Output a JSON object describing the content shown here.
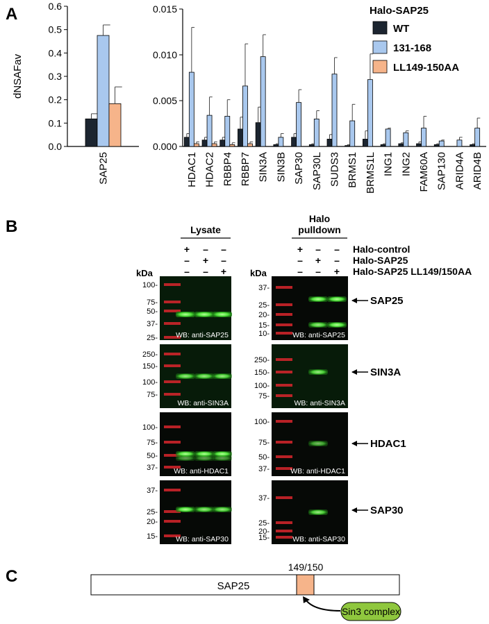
{
  "panels": {
    "a": "A",
    "b": "B",
    "c": "C"
  },
  "legend": {
    "title": "Halo-SAP25",
    "items": [
      {
        "label": "WT",
        "color": "#1c2530"
      },
      {
        "label": "131-168",
        "color": "#a9c8ee"
      },
      {
        "label": "LL149-150AA",
        "color": "#f6b48a"
      }
    ]
  },
  "chart_data": [
    {
      "type": "bar",
      "ylabel": "dNSAFav",
      "ylim": [
        0,
        0.6
      ],
      "yticks": [
        "0.0",
        "0.1",
        "0.2",
        "0.3",
        "0.4",
        "0.5",
        "0.6"
      ],
      "categories": [
        "SAP25"
      ],
      "series": [
        {
          "name": "WT",
          "values": [
            0.118
          ],
          "err": [
            0.022
          ]
        },
        {
          "name": "131-168",
          "values": [
            0.475
          ],
          "err": [
            0.045
          ]
        },
        {
          "name": "LL149-150AA",
          "values": [
            0.183
          ],
          "err": [
            0.072
          ]
        }
      ]
    },
    {
      "type": "bar",
      "ylim": [
        0,
        0.015
      ],
      "yticks": [
        "0.000",
        "0.005",
        "0.010",
        "0.015"
      ],
      "categories": [
        "HDAC1",
        "HDAC2",
        "RBBP4",
        "RBBP7",
        "SIN3A",
        "SIN3B",
        "SAP30",
        "SAP30L",
        "SUDS3",
        "BRMS1",
        "BRMS1L",
        "ING1",
        "ING2",
        "FAM60A",
        "SAP130",
        "ARID4A",
        "ARID4B"
      ],
      "series": [
        {
          "name": "WT",
          "values": [
            0.001,
            0.0007,
            0.0007,
            0.0019,
            0.0026,
            0.0002,
            0.001,
            0.0002,
            0.0008,
            0.0001,
            0.0008,
            0.0002,
            0.0003,
            0.0003,
            0.0002,
            0.0,
            0.0002
          ],
          "err": [
            0.0004,
            0.0003,
            0.0003,
            0.0013,
            0.0017,
            0.0001,
            0.0004,
            0.0001,
            0.0005,
            0.0001,
            0.0009,
            0.0001,
            0.0001,
            0.0002,
            0.0001,
            0,
            0.0001
          ]
        },
        {
          "name": "131-168",
          "values": [
            0.0081,
            0.0034,
            0.0033,
            0.0066,
            0.0098,
            0.001,
            0.0048,
            0.003,
            0.0079,
            0.0028,
            0.0073,
            0.0019,
            0.0015,
            0.002,
            0.0006,
            0.0007,
            0.002
          ],
          "err": [
            0.0049,
            0.002,
            0.0018,
            0.0046,
            0.0024,
            0.0004,
            0.0014,
            0.0009,
            0.0018,
            0.0018,
            0.0028,
            0.0001,
            0.0002,
            0.0013,
            0.0001,
            0.0003,
            0.0011
          ]
        },
        {
          "name": "LL149-150AA",
          "values": [
            0.0003,
            0.0003,
            0.0002,
            0.0003,
            0,
            0,
            0,
            0,
            0,
            0,
            0,
            0,
            0,
            0,
            0,
            0,
            0
          ],
          "err": [
            0.0002,
            0.0002,
            0.0002,
            0.0002,
            0,
            0,
            0,
            0,
            0,
            0,
            0,
            0,
            0,
            0,
            0,
            0,
            0
          ]
        }
      ]
    }
  ],
  "blot": {
    "headers": {
      "lysate": "Lysate",
      "halo_line1": "Halo",
      "halo_line2": "pulldown"
    },
    "conditions": [
      {
        "label": "Halo-control",
        "signs": [
          "+",
          "–",
          "–"
        ]
      },
      {
        "label": "Halo-SAP25",
        "signs": [
          "–",
          "+",
          "–"
        ]
      },
      {
        "label": "Halo-SAP25 LL149/150AA",
        "signs": [
          "–",
          "–",
          "+"
        ]
      }
    ],
    "kda_label": "kDa",
    "rows": [
      {
        "target": "SAP25",
        "wb_lysate": "WB: anti-SAP25",
        "wb_pulldown": "WB: anti-SAP25",
        "markers_lysate": [
          "100-",
          "75-",
          "50-",
          "37-",
          "25-"
        ],
        "markers_pulldown": [
          "37-",
          "25-",
          "20-",
          "15-",
          "10-"
        ]
      },
      {
        "target": "SIN3A",
        "wb_lysate": "WB: anti-SIN3A",
        "wb_pulldown": "WB: anti-SIN3A",
        "markers_lysate": [
          "250-",
          "150-",
          "100-",
          "75-"
        ],
        "markers_pulldown": [
          "250-",
          "150-",
          "100-",
          "75-"
        ]
      },
      {
        "target": "HDAC1",
        "wb_lysate": "WB: anti-HDAC1",
        "wb_pulldown": "WB: anti-HDAC1",
        "markers_lysate": [
          "100-",
          "75-",
          "50-",
          "37-"
        ],
        "markers_pulldown": [
          "100-",
          "75-",
          "50-",
          "37-"
        ]
      },
      {
        "target": "SAP30",
        "wb_lysate": "WB: anti-SAP30",
        "wb_pulldown": "WB: anti-SAP30",
        "markers_lysate": [
          "37-",
          "25-",
          "20-",
          "15-"
        ],
        "markers_pulldown": [
          "37-",
          "25-",
          "20-",
          "15-"
        ]
      }
    ]
  },
  "schematic": {
    "protein": "SAP25",
    "site": "149/150",
    "complex": "Sin3 complex",
    "site_color": "#f6b48a",
    "complex_color": "#8fc73e"
  }
}
